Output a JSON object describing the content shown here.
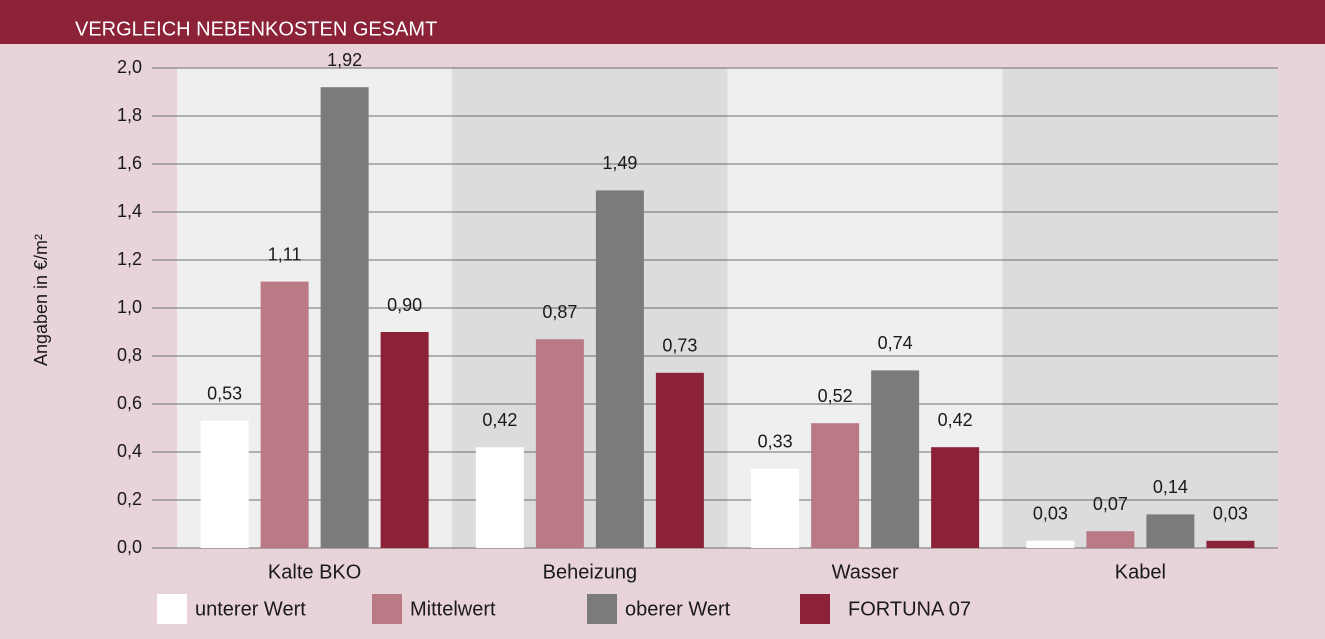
{
  "chart_data": {
    "type": "bar",
    "title": "VERGLEICH NEBENKOSTEN GESAMT",
    "y_label": "Angaben in €/m²",
    "categories": [
      "Kalte BKO",
      "Beheizung",
      "Wasser",
      "Kabel"
    ],
    "series": [
      {
        "name": "unterer Wert",
        "color": "#ffffff",
        "values": [
          0.53,
          0.42,
          0.33,
          0.03
        ],
        "value_labels": [
          "0,53",
          "0,42",
          "0,33",
          "0,03"
        ]
      },
      {
        "name": "Mittelwert",
        "color": "#b97a85",
        "values": [
          1.11,
          0.87,
          0.52,
          0.07
        ],
        "value_labels": [
          "1,11",
          "0,87",
          "0,52",
          "0,07"
        ]
      },
      {
        "name": "oberer Wert",
        "color": "#7b7b7d",
        "values": [
          1.92,
          1.49,
          0.74,
          0.14
        ],
        "value_labels": [
          "1,92",
          "1,49",
          "0,74",
          "0,14"
        ]
      },
      {
        "name": "FORTUNA 07",
        "color": "#8b2238",
        "values": [
          0.9,
          0.73,
          0.42,
          0.03
        ],
        "value_labels": [
          "0,90",
          "0,73",
          "0,42",
          "0,03"
        ]
      }
    ],
    "ylim": [
      0,
      2
    ],
    "yticks": [
      {
        "value": 0,
        "label": "0,0"
      },
      {
        "value": 0.2,
        "label": "0,2"
      },
      {
        "value": 0.4,
        "label": "0,4"
      },
      {
        "value": 0.6,
        "label": "0,6"
      },
      {
        "value": 0.8,
        "label": "0,8"
      },
      {
        "value": 1,
        "label": "1,0"
      },
      {
        "value": 1.2,
        "label": "1,2"
      },
      {
        "value": 1.4,
        "label": "1,4"
      },
      {
        "value": 1.6,
        "label": "1,6"
      },
      {
        "value": 1.8,
        "label": "1,8"
      },
      {
        "value": 2,
        "label": "2,0"
      }
    ],
    "grid": true,
    "legend": "bottom"
  }
}
